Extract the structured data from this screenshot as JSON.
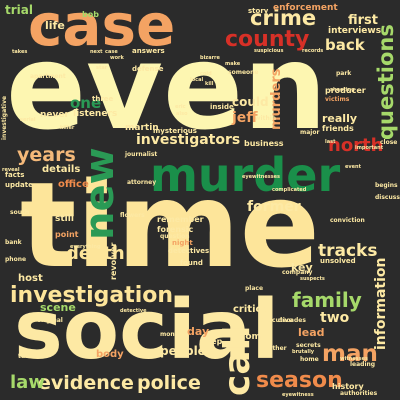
{
  "words": [
    {
      "text": "even",
      "color": "#fdf6b1"
    },
    {
      "text": "time",
      "color": "#fde59a"
    },
    {
      "text": "social",
      "color": "#fde9a4"
    },
    {
      "text": "murder",
      "color": "#1a8f4a"
    },
    {
      "text": "case",
      "color": "#f4a363"
    },
    {
      "text": "new",
      "color": "#2a9a55"
    },
    {
      "text": "investigation",
      "color": "#fde59a"
    },
    {
      "text": "evidence",
      "color": "#fde9a4"
    },
    {
      "text": "police",
      "color": "#fde9a4"
    },
    {
      "text": "crime",
      "color": "#fde9a4"
    },
    {
      "text": "county",
      "color": "#d73027"
    },
    {
      "text": "questions",
      "color": "#a6d96a"
    },
    {
      "text": "season",
      "color": "#f08b4b"
    },
    {
      "text": "man",
      "color": "#f4a363"
    },
    {
      "text": "family",
      "color": "#a6d96a"
    },
    {
      "text": "death",
      "color": "#fde59a"
    },
    {
      "text": "years",
      "color": "#f4b97a"
    },
    {
      "text": "north",
      "color": "#d73027"
    },
    {
      "text": "tracks",
      "color": "#fde9a4"
    },
    {
      "text": "investigators",
      "color": "#fde9a4"
    },
    {
      "text": "information",
      "color": "#fde9a4"
    },
    {
      "text": "law",
      "color": "#a6d96a"
    },
    {
      "text": "back",
      "color": "#fde9a4"
    },
    {
      "text": "one",
      "color": "#2a9a55"
    },
    {
      "text": "two",
      "color": "#fde9a4"
    },
    {
      "text": "former",
      "color": "#fde9a4"
    },
    {
      "text": "jeff",
      "color": "#f4a363"
    },
    {
      "text": "murders",
      "color": "#f4a363"
    },
    {
      "text": "first",
      "color": "#fde9a4"
    },
    {
      "text": "interviews",
      "color": "#fde9a4"
    },
    {
      "text": "enforcement",
      "color": "#f4a363"
    },
    {
      "text": "life",
      "color": "#fde9a4"
    },
    {
      "text": "trial",
      "color": "#a6d96a"
    },
    {
      "text": "story",
      "color": "#fde9a4"
    },
    {
      "text": "could",
      "color": "#fde9a4"
    },
    {
      "text": "really",
      "color": "#fde9a4"
    },
    {
      "text": "details",
      "color": "#fde9a4"
    },
    {
      "text": "office",
      "color": "#f08b4b"
    },
    {
      "text": "people",
      "color": "#fde9a4"
    },
    {
      "text": "day",
      "color": "#f4a363"
    },
    {
      "text": "key",
      "color": "#fde9a4"
    },
    {
      "text": "scene",
      "color": "#a6d96a"
    },
    {
      "text": "critical",
      "color": "#fde9a4"
    },
    {
      "text": "host",
      "color": "#fde9a4"
    },
    {
      "text": "body",
      "color": "#f4a363"
    },
    {
      "text": "call",
      "color": "#fde9a4"
    },
    {
      "text": "lead",
      "color": "#f4a363"
    },
    {
      "text": "bob",
      "color": "#a6d96a"
    },
    {
      "text": "never",
      "color": "#fde9a4"
    },
    {
      "text": "listeners",
      "color": "#fde9a4"
    },
    {
      "text": "martin",
      "color": "#fde9a4"
    },
    {
      "text": "business",
      "color": "#fde9a4"
    },
    {
      "text": "someone",
      "color": "#fde9a4"
    },
    {
      "text": "friends",
      "color": "#fde9a4"
    },
    {
      "text": "producer",
      "color": "#fde9a4"
    },
    {
      "text": "victims",
      "color": "#f4a363"
    },
    {
      "text": "still",
      "color": "#fde9a4"
    },
    {
      "text": "point",
      "color": "#f4a363"
    },
    {
      "text": "remember",
      "color": "#fde9a4"
    },
    {
      "text": "forensic",
      "color": "#fde9a4"
    },
    {
      "text": "night",
      "color": "#f4a363"
    },
    {
      "text": "detectives",
      "color": "#fde9a4"
    },
    {
      "text": "found",
      "color": "#fde9a4"
    },
    {
      "text": "comes",
      "color": "#fde9a4"
    },
    {
      "text": "deep",
      "color": "#fde9a4"
    },
    {
      "text": "history",
      "color": "#fde9a4"
    },
    {
      "text": "facts",
      "color": "#fde9a4"
    },
    {
      "text": "update",
      "color": "#fde9a4"
    },
    {
      "text": "answers",
      "color": "#fde9a4"
    },
    {
      "text": "defense",
      "color": "#fde9a4"
    },
    {
      "text": "three",
      "color": "#fde9a4"
    },
    {
      "text": "inside",
      "color": "#fde9a4"
    },
    {
      "text": "mysterious",
      "color": "#fde9a4"
    },
    {
      "text": "journalist",
      "color": "#fde9a4"
    },
    {
      "text": "attorney",
      "color": "#fde9a4"
    },
    {
      "text": "question",
      "color": "#fde9a4"
    },
    {
      "text": "revolver",
      "color": "#fde9a4"
    },
    {
      "text": "unsolved",
      "color": "#fde9a4"
    },
    {
      "text": "place",
      "color": "#fde9a4"
    },
    {
      "text": "company",
      "color": "#fde9a4"
    },
    {
      "text": "another",
      "color": "#fde9a4"
    },
    {
      "text": "decades",
      "color": "#fde9a4"
    },
    {
      "text": "leading",
      "color": "#fde9a4"
    },
    {
      "text": "home",
      "color": "#fde9a4"
    },
    {
      "text": "secrets",
      "color": "#fde9a4"
    },
    {
      "text": "witnesses",
      "color": "#fde9a4"
    },
    {
      "text": "authorities",
      "color": "#fde9a4"
    },
    {
      "text": "original",
      "color": "#fde9a4"
    },
    {
      "text": "months",
      "color": "#fde9a4"
    },
    {
      "text": "turns",
      "color": "#fde9a4"
    },
    {
      "text": "executive",
      "color": "#fde9a4"
    },
    {
      "text": "investigative",
      "color": "#fde9a4"
    },
    {
      "text": "apartment",
      "color": "#fde9a4"
    },
    {
      "text": "reveal",
      "color": "#fde9a4"
    },
    {
      "text": "flowers",
      "color": "#fde9a4"
    },
    {
      "text": "phone",
      "color": "#fde9a4"
    },
    {
      "text": "bank",
      "color": "#fde9a4"
    },
    {
      "text": "south",
      "color": "#fde9a4"
    },
    {
      "text": "close",
      "color": "#fde9a4"
    },
    {
      "text": "major",
      "color": "#fde9a4"
    },
    {
      "text": "begins",
      "color": "#fde9a4"
    },
    {
      "text": "discuss",
      "color": "#fde9a4"
    },
    {
      "text": "conviction",
      "color": "#fde9a4"
    },
    {
      "text": "park",
      "color": "#fde9a4"
    },
    {
      "text": "local",
      "color": "#fde9a4"
    },
    {
      "text": "within",
      "color": "#fde9a4"
    },
    {
      "text": "records",
      "color": "#fde9a4"
    },
    {
      "text": "suspicious",
      "color": "#fde9a4"
    },
    {
      "text": "takes",
      "color": "#fde9a4"
    },
    {
      "text": "next",
      "color": "#fde9a4"
    },
    {
      "text": "case",
      "color": "#fde9a4"
    },
    {
      "text": "eric",
      "color": "#fde9a4"
    },
    {
      "text": "kill",
      "color": "#fde9a4"
    },
    {
      "text": "also",
      "color": "#fde9a4"
    },
    {
      "text": "last",
      "color": "#fde9a4"
    },
    {
      "text": "detective",
      "color": "#fde9a4"
    },
    {
      "text": "complicated",
      "color": "#fde9a4"
    },
    {
      "text": "eyewitnesses",
      "color": "#fde9a4"
    },
    {
      "text": "event",
      "color": "#fde9a4"
    },
    {
      "text": "eyewitness",
      "color": "#fde9a4"
    },
    {
      "text": "important",
      "color": "#fde9a4"
    },
    {
      "text": "brutally",
      "color": "#fde9a4"
    },
    {
      "text": "shooting",
      "color": "#fde9a4"
    },
    {
      "text": "suspects",
      "color": "#fde9a4"
    },
    {
      "text": "serial",
      "color": "#fde9a4"
    },
    {
      "text": "star",
      "color": "#fde9a4"
    },
    {
      "text": "killer",
      "color": "#fde9a4"
    },
    {
      "text": "everything",
      "color": "#fde9a4"
    },
    {
      "text": "bizarre",
      "color": "#fde9a4"
    },
    {
      "text": "make",
      "color": "#fde9a4"
    },
    {
      "text": "cold",
      "color": "#fde9a4"
    },
    {
      "text": "work",
      "color": "#fde9a4"
    }
  ]
}
